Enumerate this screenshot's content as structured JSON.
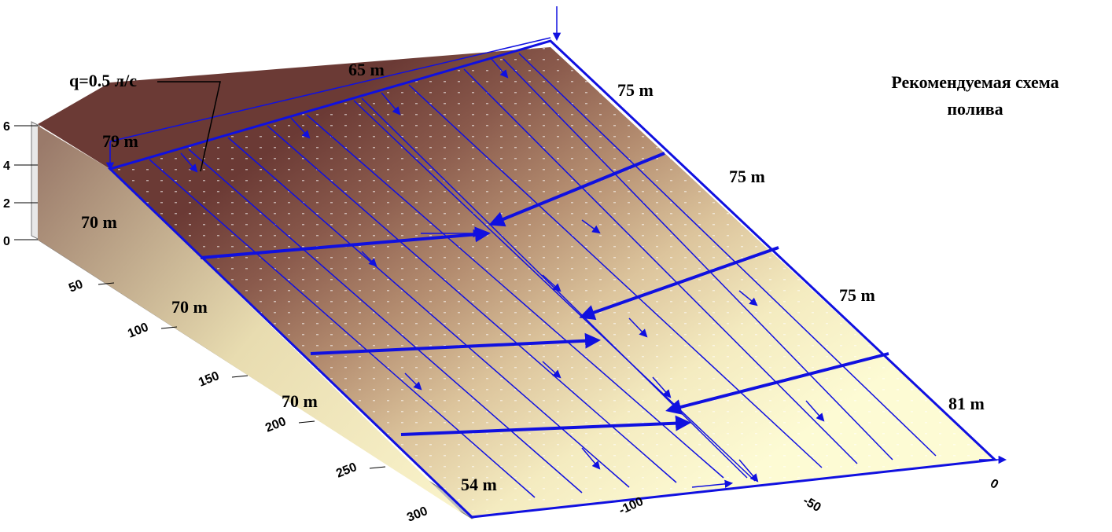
{
  "title": {
    "line1": "Рекомендуемая схема",
    "line2": "полива"
  },
  "flow_label": "q=0.5 л/с",
  "section_labels": {
    "left_top": "79 m",
    "top": "65 m",
    "right_1": "75 m",
    "right_2": "75 m",
    "right_3": "75 m",
    "right_4": "81 m",
    "left_1": "70 m",
    "left_2": "70 m",
    "left_3": "70 m",
    "bottom": "54 m"
  },
  "z_axis_ticks": [
    "0",
    "2",
    "4",
    "6"
  ],
  "y_axis_ticks": [
    "50",
    "100",
    "150",
    "200",
    "250",
    "300"
  ],
  "x_axis_ticks": [
    "0",
    "-50",
    "-100"
  ],
  "colors": {
    "line": "#1010e0",
    "surface_high": "#6b3a35",
    "surface_low": "#fdfbd4"
  }
}
